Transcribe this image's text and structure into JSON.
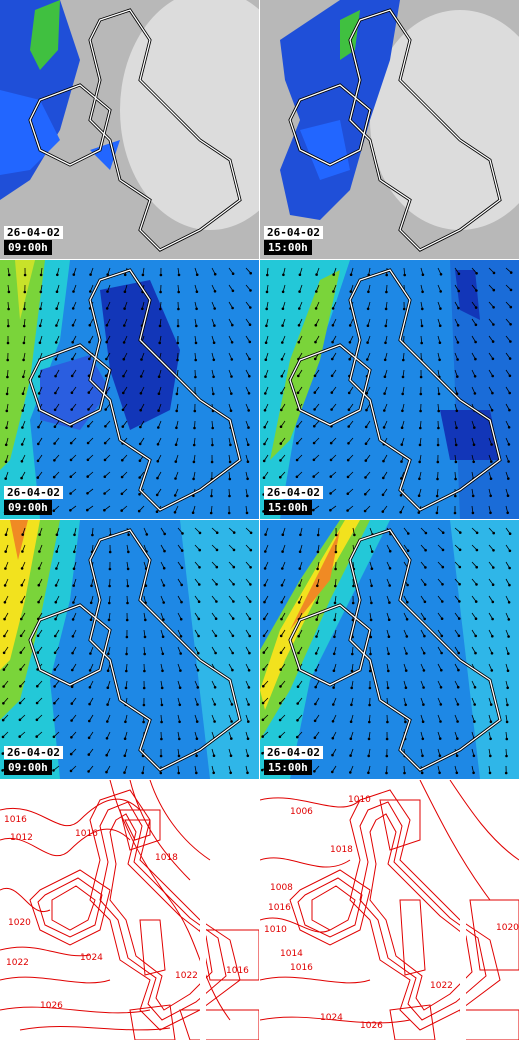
{
  "panels": [
    {
      "row": "precipitation",
      "date": "26-04-02",
      "time": "09:00h"
    },
    {
      "row": "precipitation",
      "date": "26-04-02",
      "time": "15:00h"
    },
    {
      "row": "wind-low",
      "date": "26-04-02",
      "time": "09:00h"
    },
    {
      "row": "wind-low",
      "date": "26-04-02",
      "time": "15:00h"
    },
    {
      "row": "wind-high",
      "date": "26-04-02",
      "time": "09:00h"
    },
    {
      "row": "wind-high",
      "date": "26-04-02",
      "time": "15:00h"
    }
  ],
  "isobars": {
    "left": [
      "1016",
      "1012",
      "1016",
      "1018",
      "1020",
      "1022",
      "1024",
      "1026",
      "1022",
      "1016"
    ],
    "right": [
      "1006",
      "1008",
      "1010",
      "1016",
      "1018",
      "1010",
      "1014",
      "1016",
      "1020",
      "1022",
      "1024",
      "1026"
    ]
  },
  "colors": {
    "precip_blue": "#1f4fd8",
    "precip_green": "#40c040",
    "isobar_red": "#e00000",
    "coast": "#ffffff"
  }
}
